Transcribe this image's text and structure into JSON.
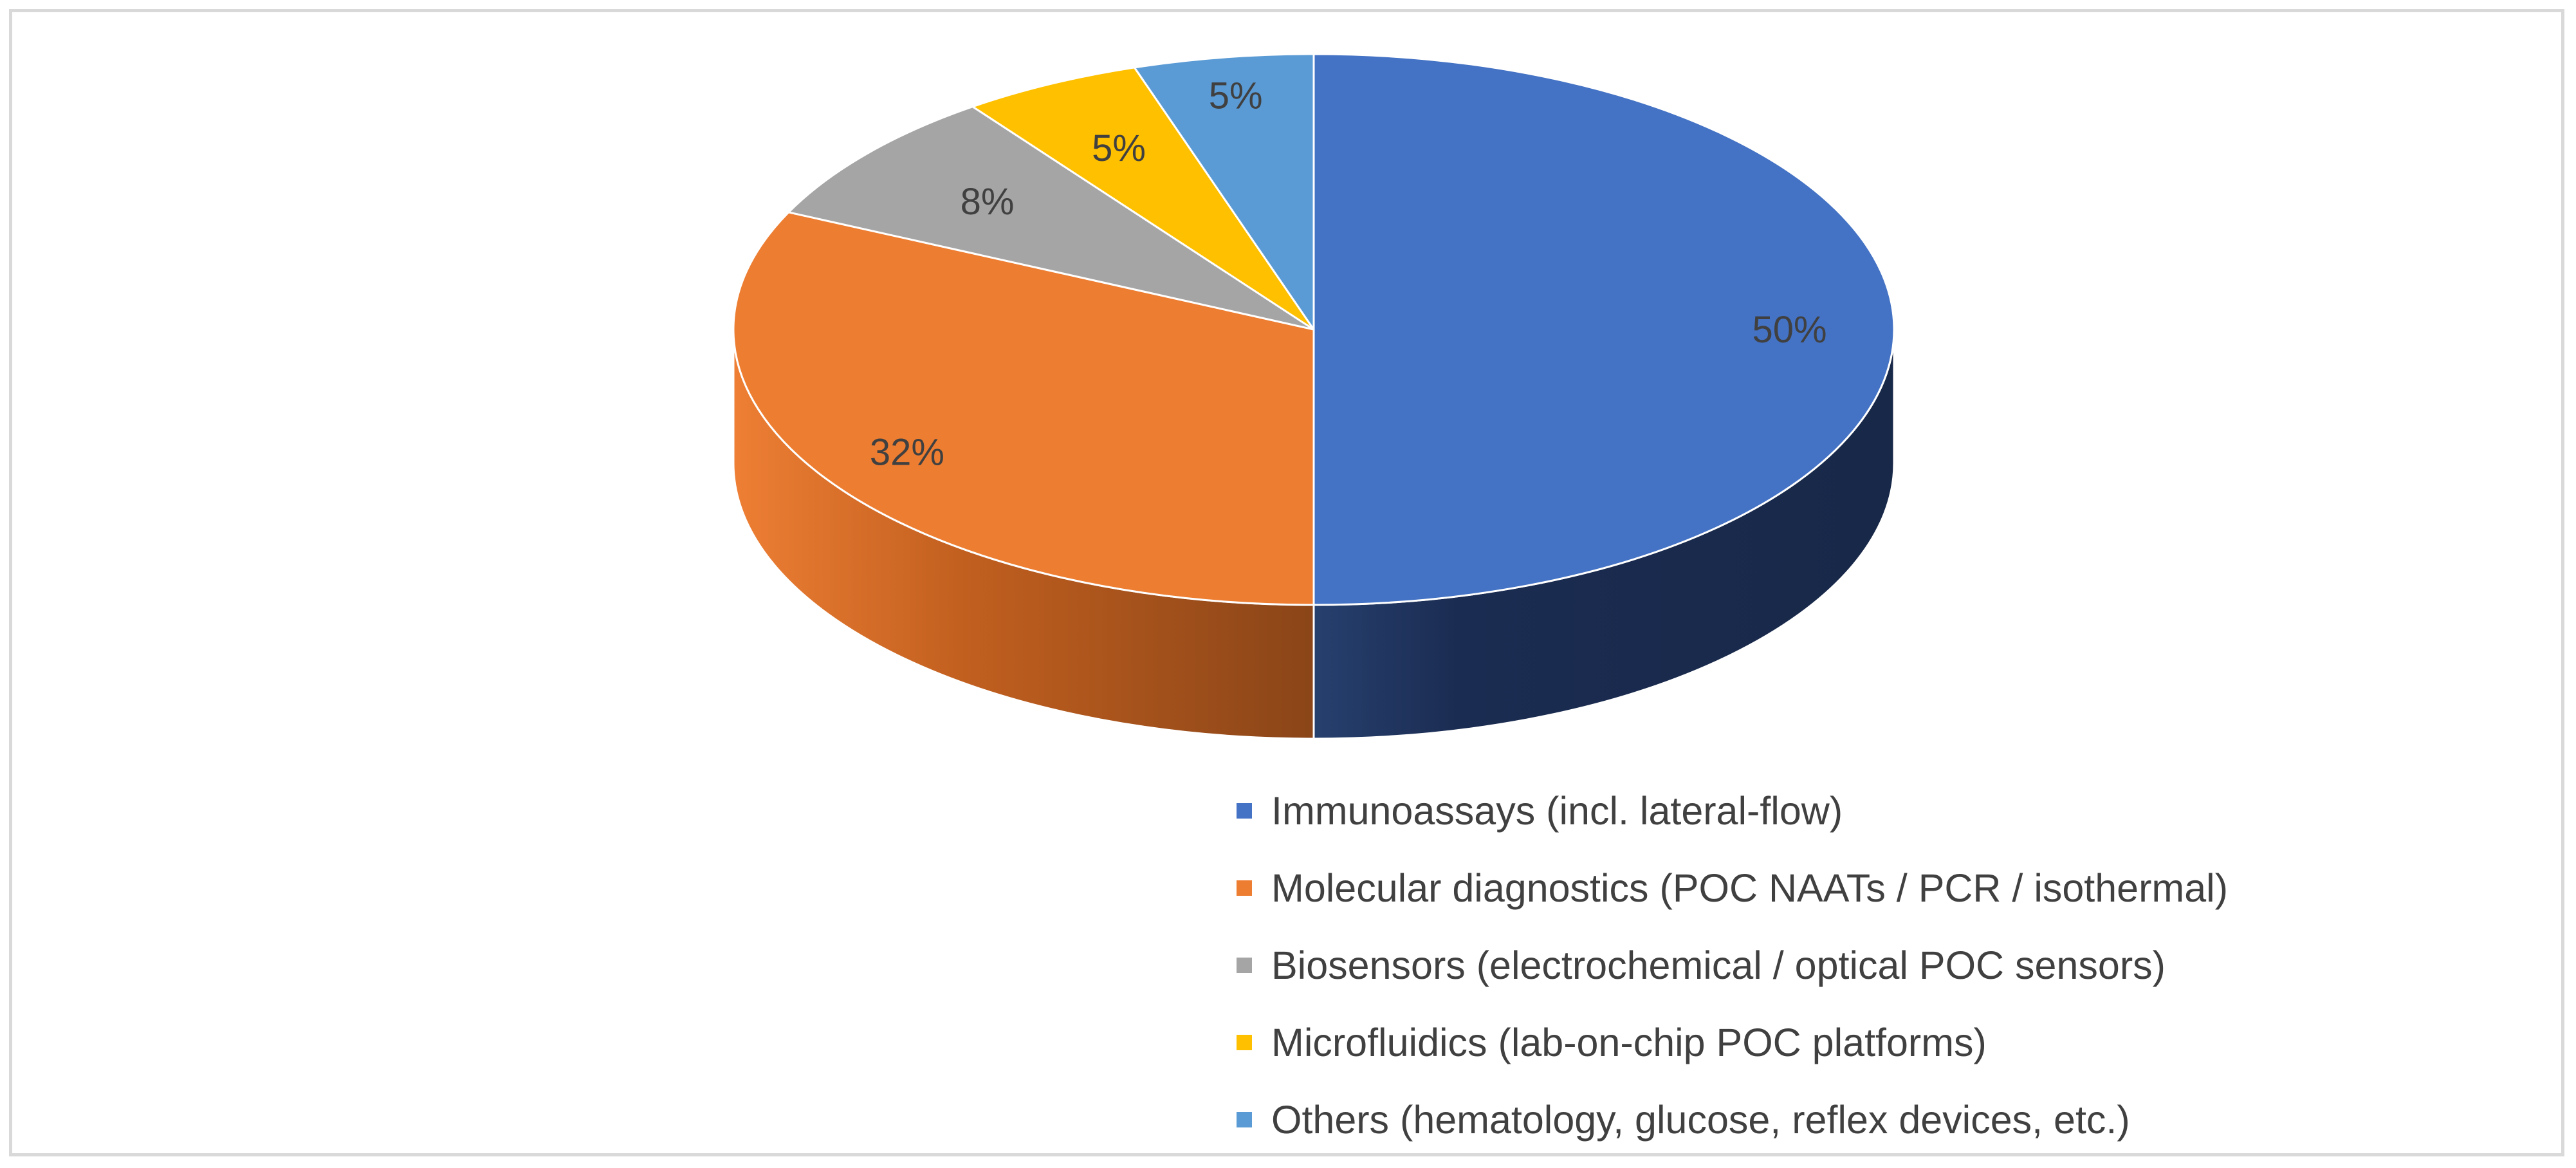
{
  "chart_data": {
    "type": "pie",
    "style": "3d",
    "categories": [
      "Immunoassays (incl. lateral-flow)",
      "Molecular diagnostics (POC NAATs / PCR / isothermal)",
      "Biosensors (electrochemical / optical POC sensors)",
      "Microfluidics (lab-on-chip POC platforms)",
      "Others (hematology, glucose, reflex devices, etc.)"
    ],
    "values": [
      50,
      32,
      8,
      5,
      5
    ],
    "data_labels": [
      "50%",
      "32%",
      "8%",
      "5%",
      "5%"
    ],
    "colors": [
      "#4472C4",
      "#ED7D31",
      "#A5A5A5",
      "#FFC000",
      "#5B9BD5"
    ],
    "side_colors": [
      "#1B2C52",
      "#C8661E",
      "#7F7F7F",
      "#BF9000",
      "#2E6DA6"
    ],
    "legend_position": "bottom-right",
    "title": ""
  }
}
